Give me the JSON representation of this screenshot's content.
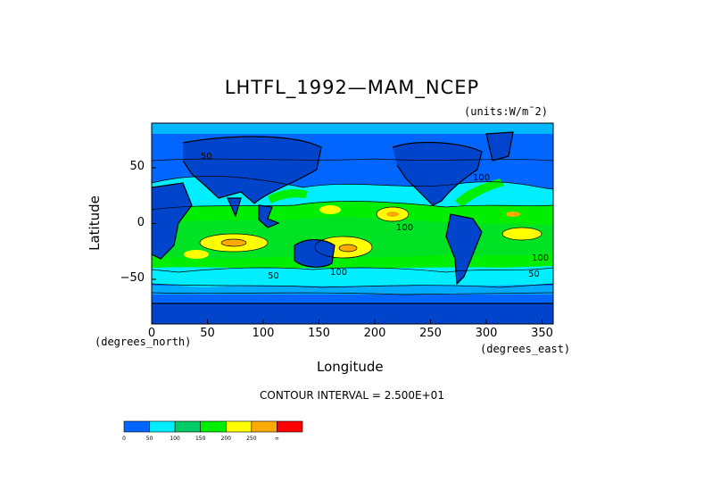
{
  "chart_data": {
    "type": "heatmap",
    "title": "LHTFL_1992—MAM_NCEP",
    "units_label": "(units:W/m¯2)",
    "xlabel": "Longitude",
    "ylabel": "Latitude",
    "x_units_label": "(degrees_east)",
    "y_units_label": "(degrees_north)",
    "x_ticks": [
      "0",
      "50",
      "100",
      "150",
      "200",
      "250",
      "300",
      "350"
    ],
    "y_ticks": [
      "50",
      "0",
      "−50"
    ],
    "xlim": [
      0,
      360
    ],
    "ylim": [
      -90,
      90
    ],
    "contour_interval_text": "CONTOUR INTERVAL = 2.500E+01",
    "colorbar": {
      "levels": [
        0,
        50,
        100,
        150,
        200,
        250
      ],
      "tick_labels": [
        "0",
        "50",
        "100",
        "150",
        "200",
        "250",
        "∞"
      ],
      "colors": [
        "#0066ff",
        "#00eeff",
        "#00cc66",
        "#00ee00",
        "#ffff00",
        "#ffaa00",
        "#ff0000"
      ]
    },
    "contour_labels": [
      "50",
      "100",
      "100",
      "100",
      "50",
      "100",
      "50"
    ]
  }
}
